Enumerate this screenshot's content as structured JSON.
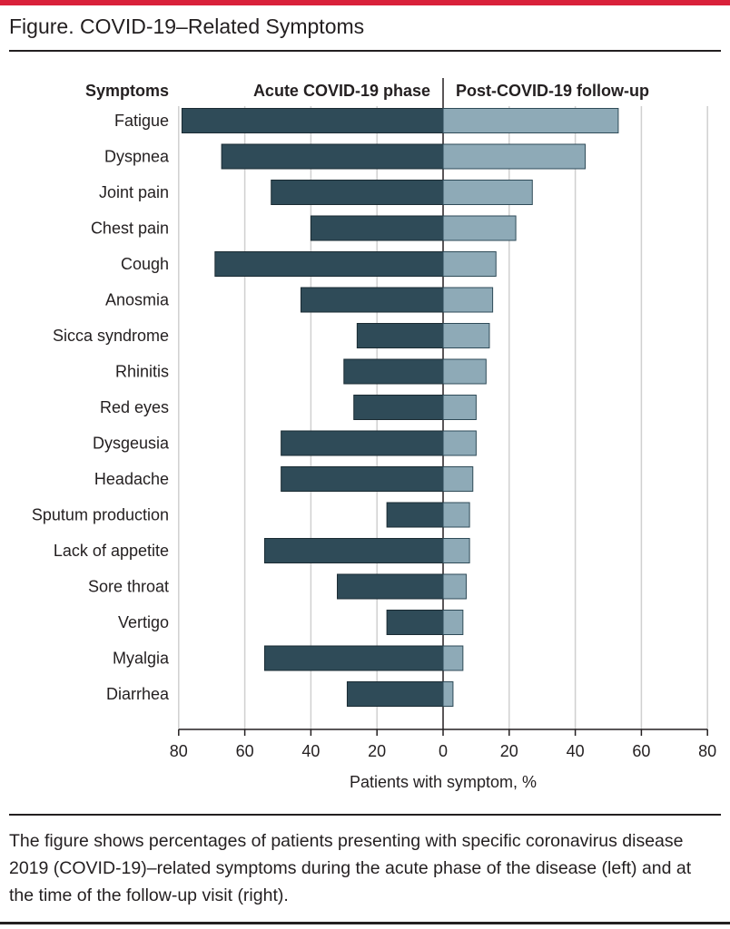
{
  "figure": {
    "title": "Figure. COVID-19–Related Symptoms",
    "caption": "The figure shows percentages of patients presenting with specific coronavirus disease 2019 (COVID-19)–related symptoms during the acute phase of the disease (left) and at the time of the follow-up visit (right)."
  },
  "colors": {
    "accent": "#d9213a",
    "acute": "#2f4b58",
    "followup": "#8eaab7",
    "grid": "#d0d0d0",
    "text": "#231f20"
  },
  "chart_data": {
    "type": "bar",
    "orientation": "horizontal",
    "layout": "back-to-back",
    "categories_header": "Symptoms",
    "categories": [
      "Fatigue",
      "Dyspnea",
      "Joint pain",
      "Chest pain",
      "Cough",
      "Anosmia",
      "Sicca syndrome",
      "Rhinitis",
      "Red eyes",
      "Dysgeusia",
      "Headache",
      "Sputum production",
      "Lack of appetite",
      "Sore throat",
      "Vertigo",
      "Myalgia",
      "Diarrhea"
    ],
    "series": [
      {
        "name": "Acute COVID-19 phase",
        "side": "left",
        "color": "#2f4b58",
        "values": [
          79,
          67,
          52,
          40,
          69,
          43,
          26,
          30,
          27,
          49,
          49,
          17,
          54,
          32,
          17,
          54,
          29
        ]
      },
      {
        "name": "Post-COVID-19 follow-up",
        "side": "right",
        "color": "#8eaab7",
        "values": [
          53,
          43,
          27,
          22,
          16,
          15,
          14,
          13,
          10,
          10,
          9,
          8,
          8,
          7,
          6,
          6,
          3
        ]
      }
    ],
    "xlim": [
      0,
      80
    ],
    "xticks": [
      0,
      20,
      40,
      60,
      80
    ],
    "xtick_labels_left": [
      "80",
      "60",
      "40",
      "20"
    ],
    "xtick_labels_right": [
      "0",
      "20",
      "40",
      "60",
      "80"
    ],
    "xlabel": "Patients with symptom, %",
    "grid": "vertical"
  }
}
